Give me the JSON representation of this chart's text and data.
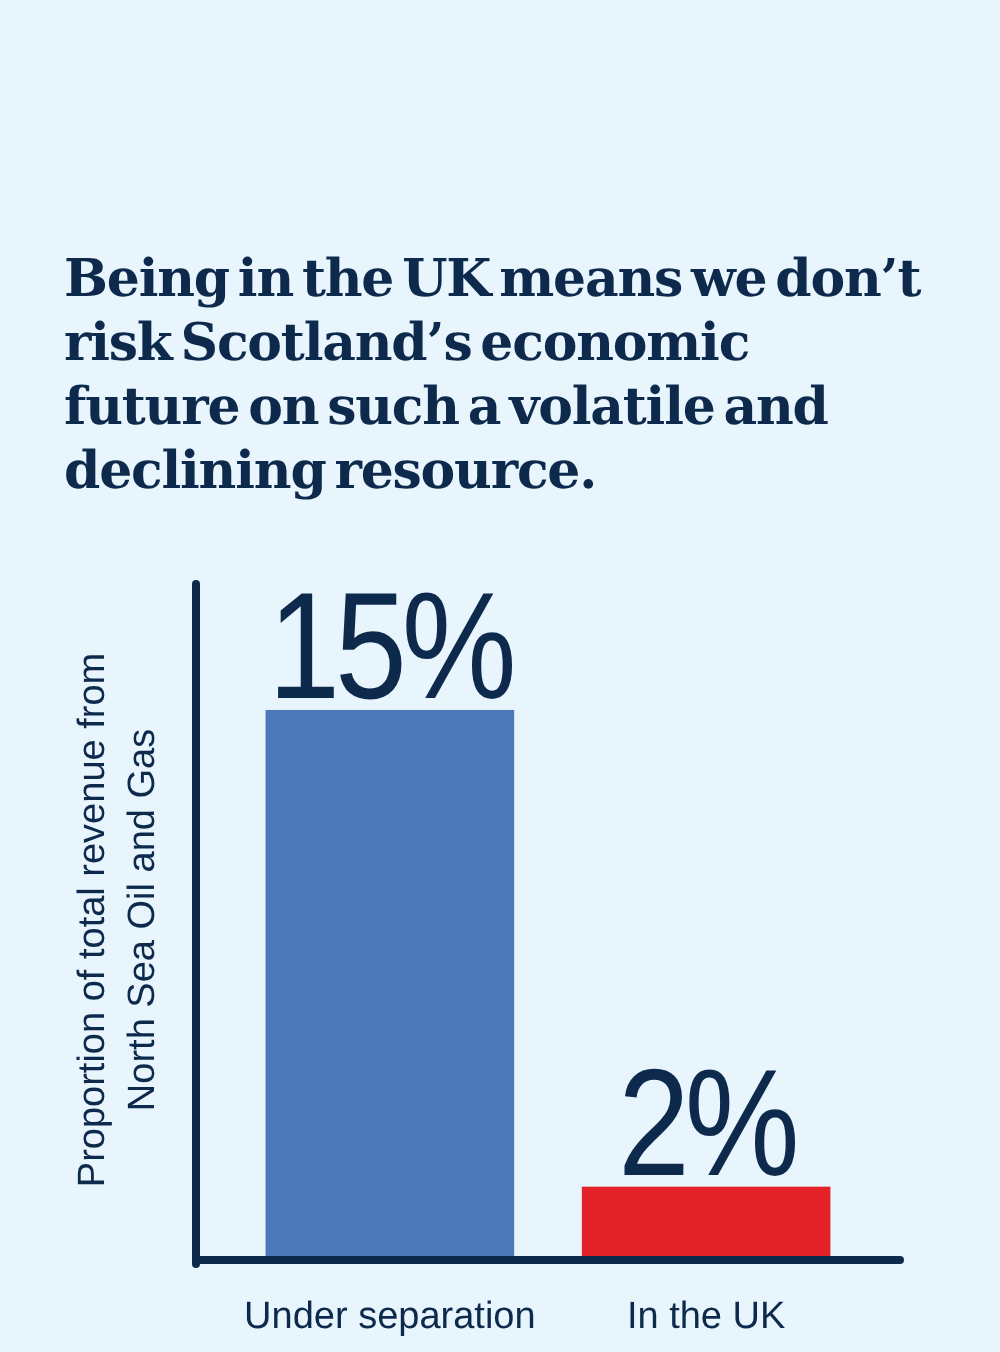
{
  "chart_data": {
    "type": "bar",
    "title": "Being in the UK means we don’t risk Scotland’s economic future on such a volatile and declining resource.",
    "ylabel": "Proportion of total revenue from North Sea Oil and Gas",
    "categories": [
      "Under separation",
      "In the UK"
    ],
    "values": [
      15,
      2
    ],
    "colors": [
      "#4a78b8",
      "#e4222a"
    ],
    "value_labels": [
      "15%",
      "2%"
    ]
  }
}
